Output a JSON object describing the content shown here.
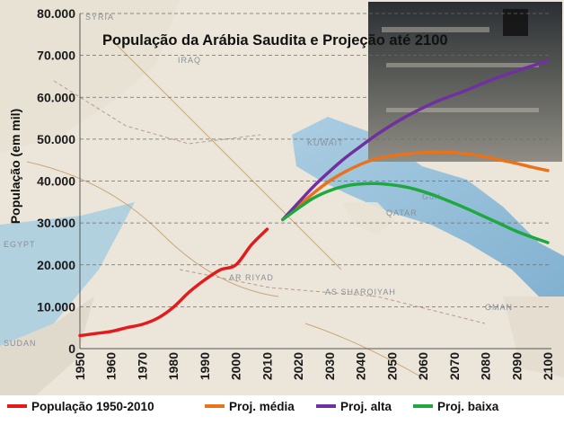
{
  "chart_data": {
    "type": "line",
    "title": "População da Arábia Saudita e Projeção até 2100",
    "ylabel": "População (em mil)",
    "xlabel": "",
    "ylim": [
      0,
      80000
    ],
    "xlim": [
      1950,
      2100
    ],
    "y_ticks": [
      "0",
      "10.000",
      "20.000",
      "30.000",
      "40.000",
      "50.000",
      "60.000",
      "70.000",
      "80.000"
    ],
    "y_tick_values": [
      0,
      10000,
      20000,
      30000,
      40000,
      50000,
      60000,
      70000,
      80000
    ],
    "x_ticks": [
      "1950",
      "1960",
      "1970",
      "1980",
      "1990",
      "2000",
      "2010",
      "2020",
      "2030",
      "2040",
      "2050",
      "2060",
      "2070",
      "2080",
      "2090",
      "2100"
    ],
    "x_tick_values": [
      1950,
      1960,
      1970,
      1980,
      1990,
      2000,
      2010,
      2020,
      2030,
      2040,
      2050,
      2060,
      2070,
      2080,
      2090,
      2100
    ],
    "grid": "horizontal dashed",
    "legend_position": "bottom",
    "background": "map of the Arabian Peninsula with a photo of the Kaaba in the top-right",
    "series": [
      {
        "name": "População 1950-2010",
        "color": "#e41a1c",
        "x": [
          1950,
          1955,
          1960,
          1965,
          1970,
          1975,
          1980,
          1985,
          1990,
          1995,
          2000,
          2005,
          2010
        ],
        "y": [
          3100,
          3600,
          4100,
          5000,
          5800,
          7300,
          9900,
          13500,
          16400,
          18800,
          20000,
          24800,
          28500
        ]
      },
      {
        "name": "Proj. média",
        "color": "#e8731a",
        "x": [
          2015,
          2020,
          2025,
          2030,
          2035,
          2040,
          2045,
          2050,
          2055,
          2060,
          2065,
          2070,
          2075,
          2080,
          2085,
          2090,
          2095,
          2100
        ],
        "y": [
          30800,
          34000,
          37200,
          40000,
          42200,
          44000,
          45300,
          46000,
          46500,
          46800,
          46900,
          46800,
          46400,
          45800,
          45000,
          44200,
          43300,
          42500
        ]
      },
      {
        "name": "Proj. alta",
        "color": "#7030a0",
        "x": [
          2015,
          2020,
          2025,
          2030,
          2035,
          2040,
          2045,
          2050,
          2055,
          2060,
          2065,
          2070,
          2075,
          2080,
          2085,
          2090,
          2095,
          2100
        ],
        "y": [
          30800,
          34800,
          38800,
          42300,
          45500,
          48300,
          51000,
          53400,
          55600,
          57500,
          59200,
          60600,
          62000,
          63600,
          65000,
          66300,
          67500,
          68700
        ]
      },
      {
        "name": "Proj. baixa",
        "color": "#1fa83f",
        "x": [
          2015,
          2020,
          2025,
          2030,
          2035,
          2040,
          2045,
          2050,
          2055,
          2060,
          2065,
          2070,
          2075,
          2080,
          2085,
          2090,
          2095,
          2100
        ],
        "y": [
          30800,
          33500,
          36000,
          37700,
          38800,
          39300,
          39400,
          39100,
          38500,
          37500,
          36200,
          34700,
          33100,
          31400,
          29700,
          28000,
          26600,
          25300
        ]
      }
    ]
  },
  "background_labels": [
    "IRAQ",
    "SYRIA",
    "KUWAIT",
    "QATAR",
    "AR RIYAD",
    "AS SHARQIYAH",
    "OMAN",
    "SUDAN",
    "EGYPT",
    "Gulf"
  ]
}
